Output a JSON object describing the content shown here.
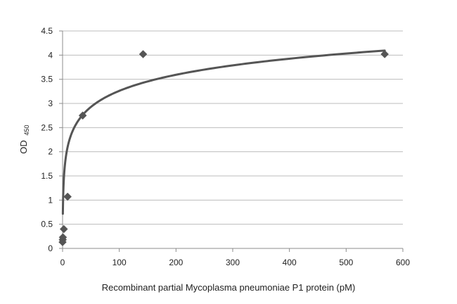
{
  "chart_data": {
    "type": "scatter",
    "xlabel": "Recombinant partial Mycoplasma pneumoniae P1 protein (pM)",
    "ylabel": "OD",
    "ylabel_subscript": "450",
    "xlim": [
      0,
      600
    ],
    "ylim": [
      0,
      4.5
    ],
    "x_ticks": [
      0,
      100,
      200,
      300,
      400,
      500,
      600
    ],
    "x_tick_labels": [
      "0",
      "100",
      "200",
      "300",
      "400",
      "500",
      "600"
    ],
    "y_ticks": [
      0,
      0.5,
      1,
      1.5,
      2,
      2.5,
      3,
      3.5,
      4,
      4.5
    ],
    "y_tick_labels": [
      "0",
      "0.5",
      "1",
      "1.5",
      "2",
      "2.5",
      "3",
      "3.5",
      "4",
      "4.5"
    ],
    "grid": "horizontal",
    "legend": "none",
    "series": [
      {
        "marker": "diamond",
        "color": "#555555",
        "points": [
          {
            "x": 0,
            "y": 0.13
          },
          {
            "x": 0.3,
            "y": 0.18
          },
          {
            "x": 0.6,
            "y": 0.23
          },
          {
            "x": 2.2,
            "y": 0.4
          },
          {
            "x": 8.9,
            "y": 1.07
          },
          {
            "x": 35.5,
            "y": 2.75
          },
          {
            "x": 142,
            "y": 4.02
          },
          {
            "x": 568,
            "y": 4.02
          }
        ]
      }
    ],
    "trendline": {
      "type": "logarithmic",
      "color": "#555555",
      "x_range": [
        0.5,
        568
      ],
      "intercept": 1.05,
      "slope": 0.48
    }
  }
}
